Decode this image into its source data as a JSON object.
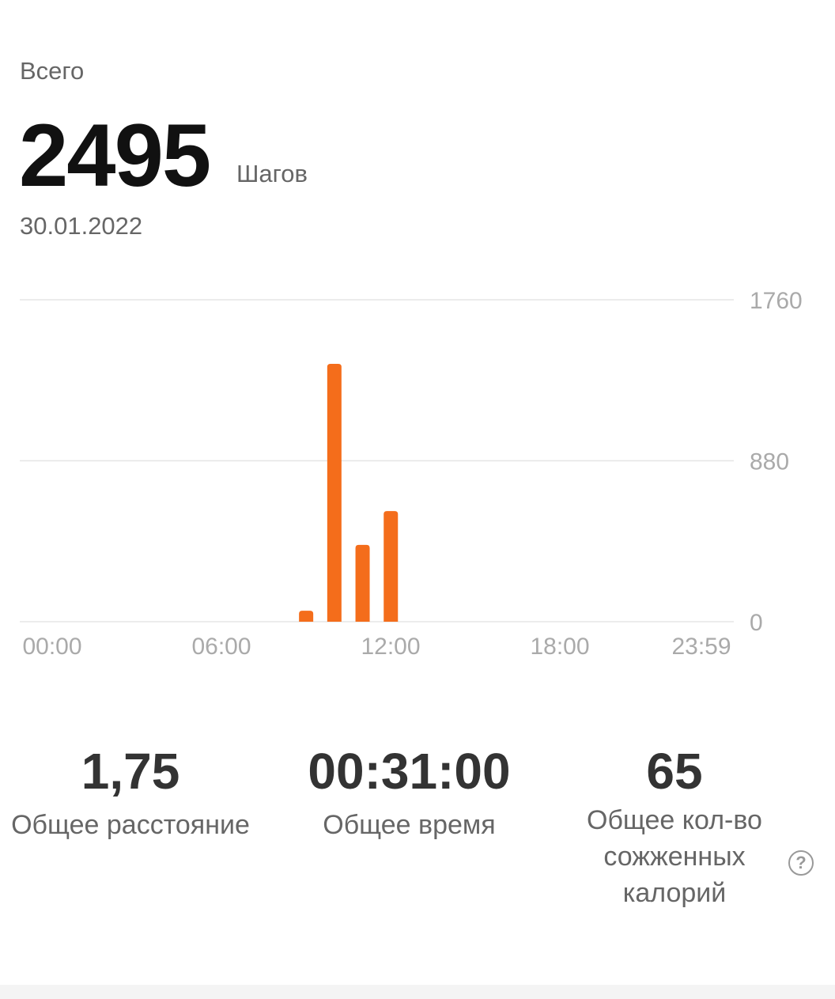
{
  "header": {
    "total_label": "Всего",
    "steps": "2495",
    "unit": "Шагов",
    "date": "30.01.2022"
  },
  "chart_data": {
    "type": "bar",
    "x_unit": "hour",
    "x_ticks": [
      "00:00",
      "06:00",
      "12:00",
      "18:00",
      "23:59"
    ],
    "y_ticks": [
      "1760",
      "880",
      "0"
    ],
    "ylim": [
      0,
      1760
    ],
    "grid": true,
    "bar_color": "#f46d1b",
    "hours": [
      9,
      10,
      11,
      12
    ],
    "values": [
      60,
      1410,
      420,
      605
    ]
  },
  "stats": [
    {
      "value": "1,75",
      "label": "Общее расстояние"
    },
    {
      "value": "00:31:00",
      "label": "Общее время"
    },
    {
      "value": "65",
      "label": "Общее кол-во сожженных калорий"
    }
  ],
  "help_icon": "question-circle-icon"
}
